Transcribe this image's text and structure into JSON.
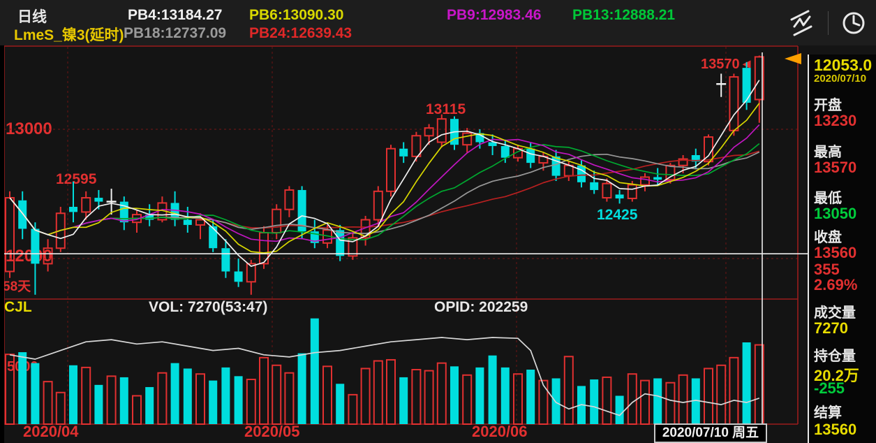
{
  "header": {
    "period": "日线",
    "symbol": "LmeS_镍3(延时)",
    "row1": [
      {
        "label": "PB4:13184.27",
        "color": "#f0f0f0"
      },
      {
        "label": "PB6:13090.30",
        "color": "#d8d800"
      },
      {
        "label": "PB9:12983.46",
        "color": "#c816c8"
      },
      {
        "label": "PB13:12888.21",
        "color": "#00c838"
      }
    ],
    "row2": [
      {
        "label": "PB18:12737.09",
        "color": "#9a9a9a"
      },
      {
        "label": "PB24:12639.43",
        "color": "#e02828"
      }
    ],
    "icons": [
      "indicator-lines-icon",
      "clock-icon"
    ]
  },
  "labels": {
    "grid_13000": "13000",
    "grid_12000": "12000",
    "high_12595": "12595",
    "high_13115": "13115",
    "low_12425": "12425",
    "high_13570": "13570◄",
    "days_58": "58天",
    "vol_5000": "5000",
    "cjl": "CJL",
    "vol_title": "VOL: 7270(53:47)",
    "opid": "OPID: 202259",
    "month_apr": "2020/04",
    "month_may": "2020/05",
    "month_jun": "2020/06",
    "cursor_date": "2020/07/10 周五"
  },
  "sidebar": {
    "cursor_price": "12053.0",
    "cursor_date": "2020/07/10",
    "open_label": "开盘",
    "open": "13230",
    "high_label": "最高",
    "high": "13570",
    "low_label": "最低",
    "low": "13050",
    "close_label": "收盘",
    "close": "13560",
    "change": "355",
    "change_pct": "2.69%",
    "volume_label": "成交量",
    "volume": "7270",
    "oi_label": "持仓量",
    "oi": "20.2万",
    "oi_change": "-255",
    "settle_label": "结算",
    "settle": "13560"
  },
  "chart_data": {
    "type": "candlestick",
    "symbol": "LmeS_镍3(延时)",
    "period": "daily",
    "date_range": "2020/04 - 2020/07/10",
    "y_gridlines": [
      13000,
      12000
    ],
    "month_grid_x": [
      97,
      390,
      740,
      1040
    ],
    "x_labels": [
      "2020/04",
      "2020/05",
      "2020/06",
      "2020/07/10 周五"
    ],
    "crosshair": {
      "price": 12053.0,
      "date": "2020/07/10"
    },
    "up_color": "#e23030",
    "down_color": "#00dede",
    "doji_color": "#f0f0f0",
    "ma_lines": [
      {
        "name": "PB4",
        "period": 4,
        "color": "#f0f0f0"
      },
      {
        "name": "PB6",
        "period": 6,
        "color": "#d8d800"
      },
      {
        "name": "PB9",
        "period": 9,
        "color": "#c016c0"
      },
      {
        "name": "PB13",
        "period": 13,
        "color": "#00a830"
      },
      {
        "name": "PB18",
        "period": 18,
        "color": "#989898"
      },
      {
        "name": "PB24",
        "period": 24,
        "color": "#b82020"
      }
    ],
    "candles": [
      [
        11900,
        12520,
        11850,
        12470
      ],
      [
        12450,
        12520,
        12150,
        12230
      ],
      [
        12230,
        12280,
        11720,
        11960
      ],
      [
        11960,
        12150,
        11900,
        12080
      ],
      [
        12080,
        12400,
        12050,
        12350
      ],
      [
        12400,
        12595,
        12280,
        12360
      ],
      [
        12360,
        12520,
        12300,
        12470
      ],
      [
        12470,
        12530,
        12380,
        12440
      ],
      [
        12440,
        12540,
        12340,
        12440
      ],
      [
        12440,
        12480,
        12220,
        12280
      ],
      [
        12280,
        12380,
        12200,
        12340
      ],
      [
        12340,
        12420,
        12250,
        12300
      ],
      [
        12300,
        12480,
        12280,
        12430
      ],
      [
        12430,
        12520,
        12250,
        12300
      ],
      [
        12300,
        12400,
        12200,
        12260
      ],
      [
        12260,
        12350,
        12150,
        12300
      ],
      [
        12250,
        12300,
        12050,
        12080
      ],
      [
        12080,
        12150,
        11850,
        11900
      ],
      [
        11900,
        12000,
        11780,
        11820
      ],
      [
        11820,
        11990,
        11720,
        11960
      ],
      [
        11960,
        12250,
        11920,
        12200
      ],
      [
        12200,
        12420,
        12150,
        12380
      ],
      [
        12380,
        12560,
        12320,
        12530
      ],
      [
        12530,
        12560,
        12150,
        12210
      ],
      [
        12210,
        12300,
        12080,
        12120
      ],
      [
        12120,
        12260,
        12080,
        12220
      ],
      [
        12220,
        12260,
        11980,
        12020
      ],
      [
        12020,
        12200,
        11990,
        12160
      ],
      [
        12160,
        12330,
        12100,
        12300
      ],
      [
        12300,
        12560,
        12250,
        12520
      ],
      [
        12520,
        12880,
        12480,
        12850
      ],
      [
        12850,
        12900,
        12740,
        12790
      ],
      [
        12790,
        12980,
        12750,
        12950
      ],
      [
        12950,
        13040,
        12880,
        13010
      ],
      [
        12900,
        13115,
        12860,
        13080
      ],
      [
        13080,
        13100,
        12840,
        12880
      ],
      [
        12880,
        13010,
        12820,
        12970
      ],
      [
        12970,
        13000,
        12850,
        12900
      ],
      [
        12900,
        12960,
        12800,
        12870
      ],
      [
        12870,
        12920,
        12740,
        12780
      ],
      [
        12780,
        12880,
        12750,
        12850
      ],
      [
        12850,
        12900,
        12700,
        12740
      ],
      [
        12740,
        12820,
        12680,
        12790
      ],
      [
        12790,
        12840,
        12600,
        12640
      ],
      [
        12640,
        12750,
        12600,
        12720
      ],
      [
        12720,
        12760,
        12550,
        12590
      ],
      [
        12590,
        12680,
        12500,
        12530
      ],
      [
        12470,
        12620,
        12440,
        12580
      ],
      [
        12495,
        12530,
        12425,
        12465
      ],
      [
        12465,
        12600,
        12440,
        12570
      ],
      [
        12570,
        12660,
        12520,
        12630
      ],
      [
        12630,
        12700,
        12560,
        12610
      ],
      [
        12610,
        12740,
        12580,
        12720
      ],
      [
        12720,
        12800,
        12660,
        12770
      ],
      [
        12800,
        12850,
        12700,
        12750
      ],
      [
        12750,
        12960,
        12720,
        12940
      ],
      [
        13350,
        13430,
        13250,
        13350
      ],
      [
        12990,
        13430,
        12950,
        13405
      ],
      [
        13475,
        13520,
        13150,
        13205
      ],
      [
        13230,
        13570,
        13050,
        13560
      ]
    ],
    "volumes": [
      6400,
      6600,
      5600,
      3900,
      2900,
      5400,
      5200,
      3600,
      4400,
      4300,
      2600,
      3400,
      4700,
      5600,
      5100,
      4600,
      4000,
      5200,
      4400,
      4100,
      6100,
      5400,
      4700,
      6500,
      9700,
      5300,
      3700,
      2700,
      5100,
      5800,
      5900,
      4300,
      5000,
      4900,
      5600,
      5300,
      4500,
      5200,
      6300,
      5200,
      4600,
      5000,
      4000,
      4200,
      6200,
      3500,
      4100,
      4300,
      2600,
      4600,
      4000,
      4200,
      3800,
      4500,
      4200,
      5100,
      5400,
      6100,
      7500,
      7270
    ],
    "volume_scale_line": 5000,
    "current_volume": 7270,
    "buy_sell_ratio": "53:47",
    "open_interest": 202259,
    "open_interest_wan": "20.2万",
    "cjl_line_wan": [
      [
        0,
        21.0
      ],
      [
        2,
        20.9
      ],
      [
        4,
        21.1
      ],
      [
        6,
        21.3
      ],
      [
        8,
        21.35
      ],
      [
        10,
        21.25
      ],
      [
        12,
        21.3
      ],
      [
        14,
        21.2
      ],
      [
        16,
        21.1
      ],
      [
        18,
        21.15
      ],
      [
        20,
        21.0
      ],
      [
        22,
        20.95
      ],
      [
        24,
        21.05
      ],
      [
        26,
        21.1
      ],
      [
        28,
        21.2
      ],
      [
        30,
        21.3
      ],
      [
        32,
        21.35
      ],
      [
        34,
        21.4
      ],
      [
        36,
        21.35
      ],
      [
        38,
        21.4
      ],
      [
        40,
        21.38
      ],
      [
        41,
        21.1
      ],
      [
        42,
        20.3
      ],
      [
        43,
        19.9
      ],
      [
        44,
        19.75
      ],
      [
        45,
        19.85
      ],
      [
        46,
        19.8
      ],
      [
        47,
        19.7
      ],
      [
        48,
        19.6
      ],
      [
        49,
        19.9
      ],
      [
        50,
        20.1
      ],
      [
        51,
        20.05
      ],
      [
        52,
        19.95
      ],
      [
        53,
        19.9
      ],
      [
        54,
        19.95
      ],
      [
        55,
        19.9
      ],
      [
        56,
        19.85
      ],
      [
        57,
        19.95
      ],
      [
        58,
        19.9
      ],
      [
        59,
        20.0
      ]
    ]
  }
}
